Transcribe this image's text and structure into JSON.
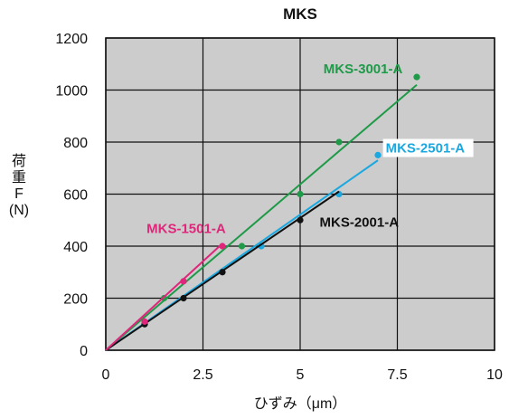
{
  "chart_data": {
    "type": "line",
    "title": "MKS",
    "xlabel": "ひずみ（μm）",
    "ylabel_chars": [
      "荷",
      "重",
      "F",
      "(N)"
    ],
    "xlim": [
      0,
      10
    ],
    "ylim": [
      0,
      1200
    ],
    "x_ticks": [
      "0",
      "2.5",
      "5",
      "7.5",
      "10"
    ],
    "y_ticks": [
      "0",
      "200",
      "400",
      "600",
      "800",
      "1000",
      "1200"
    ],
    "x_tick_values": [
      0,
      2.5,
      5,
      7.5,
      10
    ],
    "y_tick_values": [
      0,
      200,
      400,
      600,
      800,
      1000,
      1200
    ],
    "grid": true,
    "background": "#cccccc",
    "series": [
      {
        "name": "MKS-3001-A",
        "color": "#1e9a48",
        "line": [
          [
            0,
            0
          ],
          [
            8,
            1020
          ]
        ],
        "points": [
          [
            1.5,
            200
          ],
          [
            3.5,
            400
          ],
          [
            5,
            600
          ],
          [
            6,
            800
          ],
          [
            8,
            1050
          ]
        ]
      },
      {
        "name": "MKS-2501-A",
        "color": "#1aa8e0",
        "line": [
          [
            0,
            0
          ],
          [
            7,
            730
          ]
        ],
        "points": [
          [
            4,
            400
          ],
          [
            6,
            600
          ],
          [
            7,
            750
          ]
        ]
      },
      {
        "name": "MKS-2001-A",
        "color": "#111111",
        "line": [
          [
            0,
            0
          ],
          [
            6,
            610
          ]
        ],
        "points": [
          [
            1,
            100
          ],
          [
            2,
            200
          ],
          [
            3,
            300
          ],
          [
            5,
            500
          ]
        ]
      },
      {
        "name": "MKS-1501-A",
        "color": "#e0267a",
        "line": [
          [
            0,
            0
          ],
          [
            3,
            410
          ]
        ],
        "points": [
          [
            1,
            110
          ],
          [
            2,
            265
          ],
          [
            3,
            400
          ]
        ]
      }
    ]
  }
}
